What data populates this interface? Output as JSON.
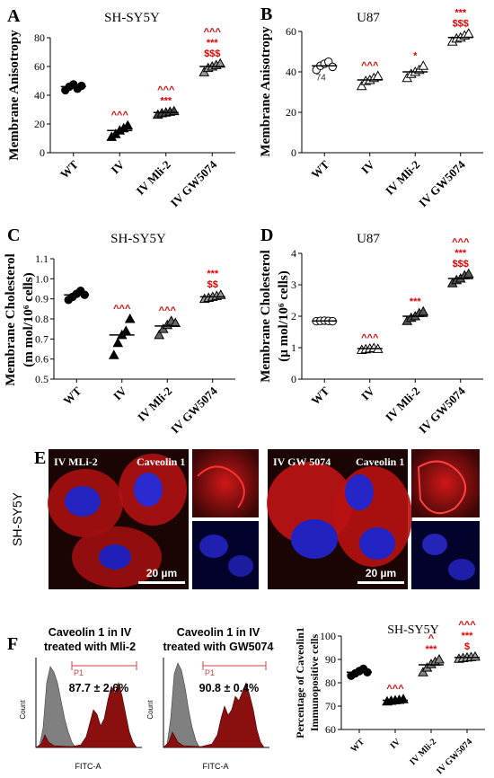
{
  "panels": {
    "A": {
      "letter": "A",
      "title": "SH-SY5Y"
    },
    "B": {
      "letter": "B",
      "title": "U87"
    },
    "C": {
      "letter": "C",
      "title": "SH-SY5Y"
    },
    "D": {
      "letter": "D",
      "title": "U87"
    },
    "E": {
      "letter": "E",
      "side_label": "SH-SY5Y",
      "left_treatment": "IV MLi-2",
      "left_stain": "Caveolin 1",
      "right_treatment": "IV GW 5074",
      "right_stain": "Caveolin 1",
      "scale_left": "20 µm",
      "scale_right": "20 µm"
    },
    "F": {
      "letter": "F",
      "hist_left_title_1": "Caveolin 1 in IV",
      "hist_left_title_2": "treated with Mli-2",
      "hist_left_pct": "87.7 ± 2.6%",
      "hist_right_title_1": "Caveolin 1 in IV",
      "hist_right_title_2": "treated with GW5074",
      "hist_right_pct": "90.8 ± 0.4%",
      "gate": "P1",
      "xlabel": "FITC-A",
      "ylabel": "Count",
      "bar_title": "SH-SY5Y"
    }
  },
  "chart_data": [
    {
      "id": "A",
      "type": "scatter",
      "title": "SH-SY5Y",
      "ylabel": "Membrane Anisotropy",
      "ylim": [
        0,
        80
      ],
      "yticks": [
        0,
        20,
        40,
        60,
        80
      ],
      "categories": [
        "WT",
        "IV",
        "IV Mli-2",
        "IV GW5074"
      ],
      "markers": [
        "circle",
        "triangle",
        "triangle",
        "triangle"
      ],
      "fills": [
        "#000000",
        "#000000",
        "#444444",
        "#999999"
      ],
      "means": [
        46,
        15.5,
        28,
        60
      ],
      "points": [
        [
          43.5,
          46,
          47.5,
          44.5,
          46.5
        ],
        [
          11,
          13,
          15.5,
          17,
          19
        ],
        [
          26.5,
          27.5,
          28,
          28.5,
          29
        ],
        [
          56,
          59,
          60,
          61,
          62
        ]
      ],
      "sig": [
        [],
        [
          "^^^"
        ],
        [
          "^^^",
          "***"
        ],
        [
          "^^^",
          "***",
          "$$$"
        ]
      ]
    },
    {
      "id": "B",
      "type": "scatter",
      "title": "U87",
      "ylabel": "Membrane Anisotropy",
      "ylim": [
        0,
        60
      ],
      "yticks": [
        0,
        20,
        40,
        60
      ],
      "categories": [
        "WT",
        "IV",
        "IV Mli-2",
        "IV GW5074"
      ],
      "markers": [
        "circle",
        "triangle",
        "triangle",
        "triangle"
      ],
      "fills": [
        "#ffffff",
        "#ffffff",
        "#ffffff",
        "#ffffff"
      ],
      "means": [
        43,
        36,
        40,
        57
      ],
      "points": [
        [
          41,
          43,
          44,
          45,
          42.5
        ],
        [
          33,
          35.5,
          36,
          37,
          38
        ],
        [
          37,
          39,
          40,
          41,
          43
        ],
        [
          55,
          56.5,
          57,
          58,
          59
        ]
      ],
      "sig": [
        [],
        [
          "^^^"
        ],
        [
          "*"
        ],
        [
          "***",
          "$$$"
        ]
      ],
      "annotation": "74"
    },
    {
      "id": "C",
      "type": "scatter",
      "title": "SH-SY5Y",
      "ylabel_1": "Membrane Cholesterol",
      "ylabel_2": "(m mol/10⁶ cells)",
      "ylim": [
        0.5,
        1.1
      ],
      "yticks": [
        0.5,
        0.6,
        0.7,
        0.8,
        0.9,
        1.0,
        1.1
      ],
      "categories": [
        "WT",
        "IV",
        "IV Mli-2",
        "IV GW5074"
      ],
      "markers": [
        "circle",
        "triangle",
        "triangle",
        "triangle"
      ],
      "fills": [
        "#000000",
        "#000000",
        "#666666",
        "#999999"
      ],
      "means": [
        0.92,
        0.72,
        0.765,
        0.91
      ],
      "points": [
        [
          0.895,
          0.91,
          0.925,
          0.94,
          0.92
        ],
        [
          0.62,
          0.68,
          0.72,
          0.74,
          0.8
        ],
        [
          0.72,
          0.75,
          0.77,
          0.79,
          0.78
        ],
        [
          0.9,
          0.905,
          0.91,
          0.915,
          0.92
        ]
      ],
      "sig": [
        [],
        [
          "^^^"
        ],
        [
          "^^^"
        ],
        [
          "***",
          "$$"
        ]
      ]
    },
    {
      "id": "D",
      "type": "scatter",
      "title": "U87",
      "ylabel_1": "Membrane Cholesterol",
      "ylabel_2": "(µ mol/10⁶ cells)",
      "ylim": [
        0,
        4
      ],
      "yticks": [
        0,
        1,
        2,
        3,
        4
      ],
      "categories": [
        "WT",
        "IV",
        "IV Mli-2",
        "IV GW5074"
      ],
      "markers": [
        "circle",
        "triangle",
        "triangle",
        "triangle"
      ],
      "fills": [
        "#ffffff",
        "#ffffff",
        "#555555",
        "#555555"
      ],
      "means": [
        1.85,
        0.97,
        2.0,
        3.2
      ],
      "points": [
        [
          1.84,
          1.85,
          1.86,
          1.85,
          1.84
        ],
        [
          0.93,
          0.95,
          0.97,
          0.99,
          0.96
        ],
        [
          1.85,
          1.95,
          2.0,
          2.1,
          2.15
        ],
        [
          3.05,
          3.15,
          3.2,
          3.3,
          3.35
        ]
      ],
      "sig": [
        [],
        [
          "^^^"
        ],
        [
          "***"
        ],
        [
          "^^^",
          "***",
          "$$$"
        ]
      ]
    },
    {
      "id": "F-bar",
      "type": "scatter",
      "title": "SH-SY5Y",
      "ylabel_1": "Percentage of Caveolin1",
      "ylabel_2": "Immunopositive cells",
      "ylim": [
        60,
        100
      ],
      "yticks": [
        60,
        70,
        80,
        90,
        100
      ],
      "categories": [
        "WT",
        "IV",
        "IV Mli-2",
        "IV GW5074"
      ],
      "markers": [
        "circle",
        "triangle",
        "triangle",
        "triangle"
      ],
      "fills": [
        "#000000",
        "#000000",
        "#888888",
        "#aaaaaa"
      ],
      "means": [
        84.5,
        72.5,
        87.7,
        90.8
      ],
      "points": [
        [
          83,
          84,
          85,
          86,
          84.5
        ],
        [
          72,
          72.3,
          72.5,
          72.7,
          73
        ],
        [
          84.5,
          86.5,
          88,
          89,
          90
        ],
        [
          90.3,
          90.6,
          90.8,
          91,
          91.2
        ]
      ],
      "sig": [
        [],
        [
          "^^^"
        ],
        [
          "^",
          "***"
        ],
        [
          "^^^",
          "***",
          "$"
        ]
      ]
    }
  ],
  "colors": {
    "sig": "#e00000",
    "hist_dark": "#8a1010",
    "hist_gray": "#808080",
    "gate": "#d04040"
  }
}
